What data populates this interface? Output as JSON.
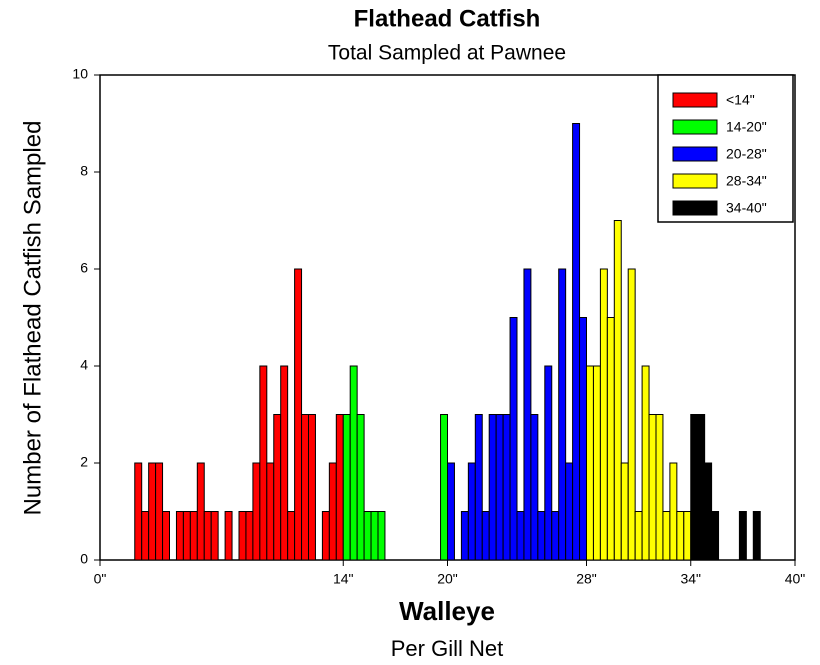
{
  "chart_data": {
    "type": "histogram",
    "title": "Flathead Catfish",
    "subtitle": "Total Sampled at Pawnee",
    "x_label": "Walleye",
    "x_sublabel": "Per Gill Net",
    "y_label": "Number of Flathead Catfish Sampled",
    "xlim": [
      0,
      40
    ],
    "ylim": [
      0,
      10
    ],
    "xticks": [
      {
        "value": 0,
        "label": "0\""
      },
      {
        "value": 14,
        "label": "14\""
      },
      {
        "value": 20,
        "label": "20\""
      },
      {
        "value": 28,
        "label": "28\""
      },
      {
        "value": 34,
        "label": "34\""
      },
      {
        "value": 40,
        "label": "40\""
      }
    ],
    "yticks": [
      0,
      2,
      4,
      6,
      8,
      10
    ],
    "legend": "upper right",
    "series": [
      {
        "name": "<14\"",
        "color": "#ff0000",
        "bins": [
          2.0,
          2.4,
          2.8,
          3.2,
          3.6,
          4.0,
          4.4,
          4.8,
          5.2,
          5.6,
          6.0,
          6.4,
          6.8,
          7.2,
          7.6,
          8.0,
          8.4,
          8.8,
          9.2,
          9.6,
          10.0,
          10.4,
          10.8,
          11.2,
          11.6,
          12.0,
          12.4,
          12.8,
          13.2,
          13.6,
          14.0
        ],
        "values": [
          2,
          1,
          2,
          2,
          1,
          0,
          1,
          1,
          1,
          2,
          1,
          1,
          0,
          1,
          0,
          1,
          1,
          2,
          4,
          2,
          3,
          4,
          1,
          6,
          3,
          3,
          0,
          1,
          2,
          3
        ]
      },
      {
        "name": "14-20\"",
        "color": "#00ff00",
        "bins": [
          14.0,
          14.4,
          14.8,
          15.2,
          15.6,
          16.0,
          16.4,
          16.8,
          17.2,
          17.6,
          18.0,
          18.4,
          18.8,
          19.2,
          19.6,
          20.0
        ],
        "values": [
          3,
          4,
          3,
          1,
          1,
          1,
          0,
          0,
          0,
          0,
          0,
          0,
          0,
          0,
          3
        ]
      },
      {
        "name": "20-28\"",
        "color": "#0000ff",
        "bins": [
          20.0,
          20.4,
          20.8,
          21.2,
          21.6,
          22.0,
          22.4,
          22.8,
          23.2,
          23.6,
          24.0,
          24.4,
          24.8,
          25.2,
          25.6,
          26.0,
          26.4,
          26.8,
          27.2,
          27.6,
          28.0
        ],
        "values": [
          2,
          0,
          1,
          2,
          3,
          1,
          3,
          3,
          3,
          5,
          1,
          6,
          3,
          1,
          4,
          1,
          6,
          2,
          9,
          5
        ]
      },
      {
        "name": "28-34\"",
        "color": "#ffff00",
        "bins": [
          28.0,
          28.4,
          28.8,
          29.2,
          29.6,
          30.0,
          30.4,
          30.8,
          31.2,
          31.6,
          32.0,
          32.4,
          32.8,
          33.2,
          33.6,
          34.0
        ],
        "values": [
          4,
          4,
          6,
          5,
          7,
          2,
          6,
          1,
          4,
          3,
          3,
          1,
          2,
          1,
          1
        ]
      },
      {
        "name": "34-40\"",
        "color": "#000000",
        "bins": [
          34.0,
          34.4,
          34.8,
          35.2,
          35.6,
          36.0,
          36.4,
          36.8,
          37.2,
          37.6,
          38.0
        ],
        "values": [
          3,
          3,
          2,
          1,
          0,
          0,
          0,
          1,
          0,
          1
        ]
      }
    ]
  }
}
